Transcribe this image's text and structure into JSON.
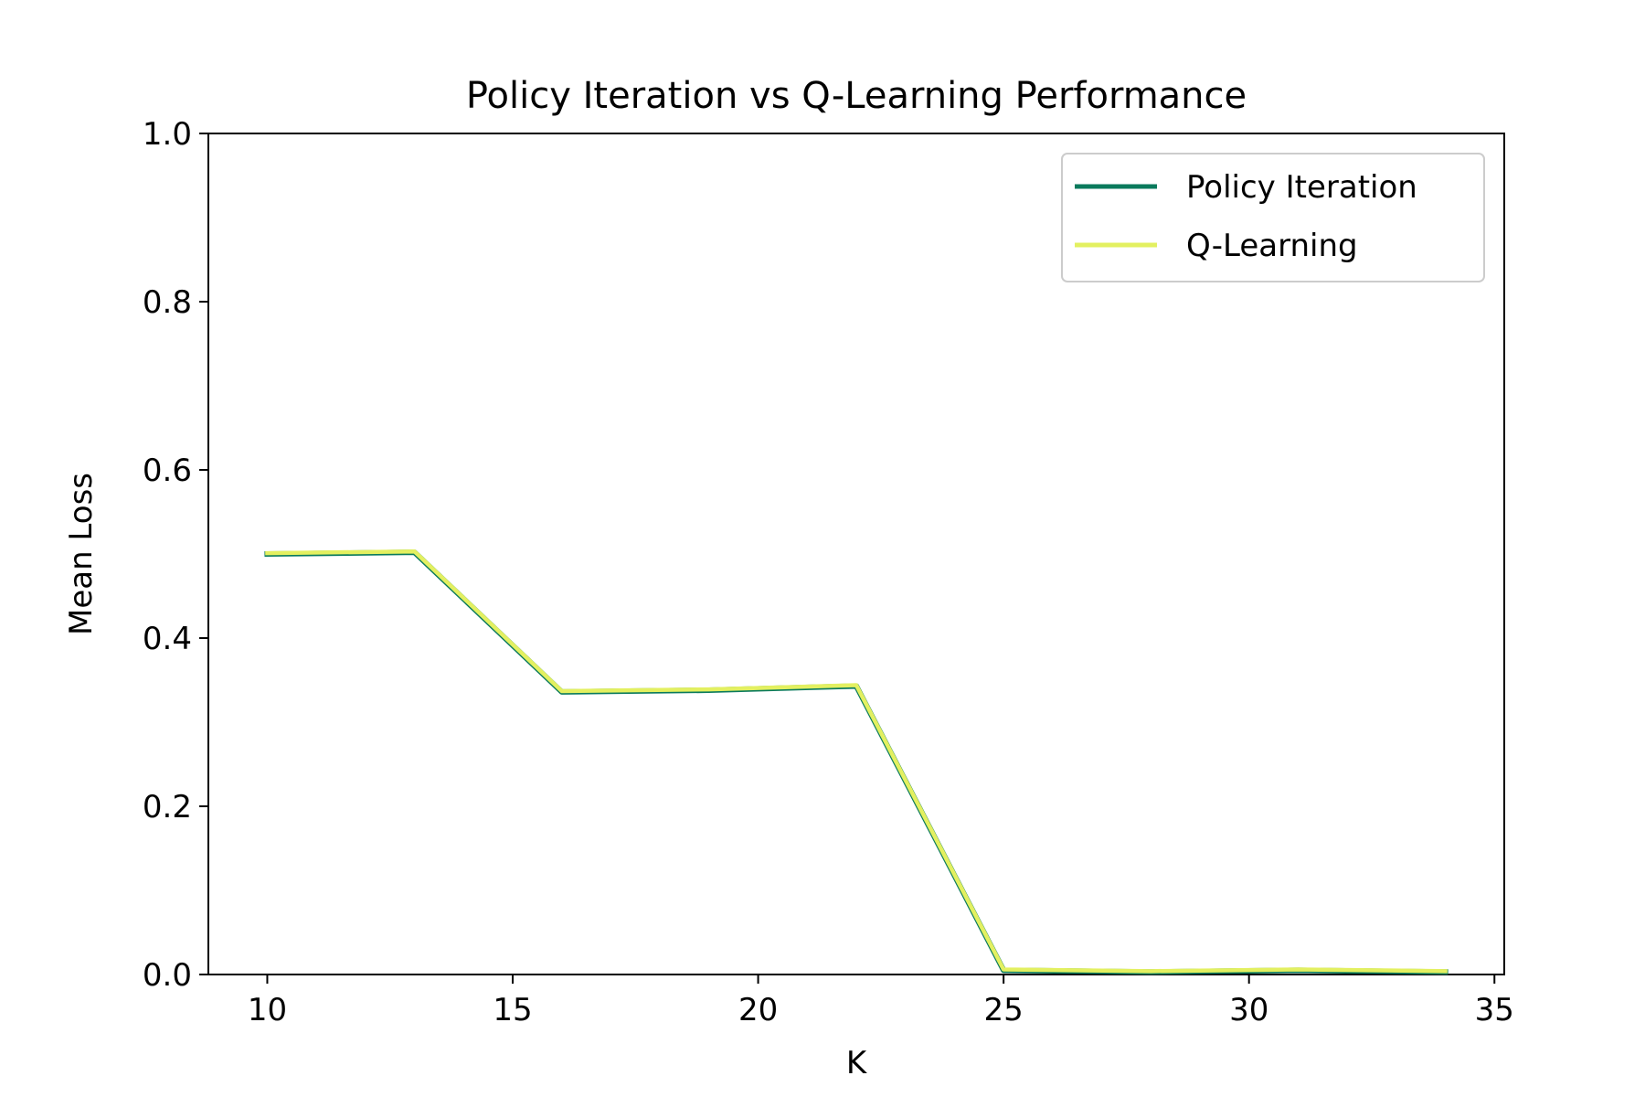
{
  "chart_data": {
    "type": "line",
    "title": "Policy Iteration vs Q-Learning Performance",
    "xlabel": "K",
    "ylabel": "Mean Loss",
    "xlim": [
      8.8,
      35.2
    ],
    "ylim": [
      0.0,
      1.0
    ],
    "xticks": [
      10,
      15,
      20,
      25,
      30,
      35
    ],
    "xtick_labels": [
      "10",
      "15",
      "20",
      "25",
      "30",
      "35"
    ],
    "yticks": [
      0.0,
      0.2,
      0.4,
      0.6,
      0.8,
      1.0
    ],
    "ytick_labels": [
      "0.0",
      "0.2",
      "0.4",
      "0.6",
      "0.8",
      "1.0"
    ],
    "grid": false,
    "legend_position": "top-right",
    "x": [
      10,
      13,
      16,
      19,
      22,
      25,
      28,
      31,
      34
    ],
    "series": [
      {
        "name": "Policy Iteration",
        "color": "#0a7a5c",
        "values": [
          0.5,
          0.502,
          0.336,
          0.338,
          0.343,
          0.005,
          0.003,
          0.005,
          0.003
        ]
      },
      {
        "name": "Q-Learning",
        "color": "#e3f060",
        "values": [
          0.501,
          0.503,
          0.337,
          0.339,
          0.344,
          0.006,
          0.004,
          0.006,
          0.004
        ]
      }
    ]
  }
}
